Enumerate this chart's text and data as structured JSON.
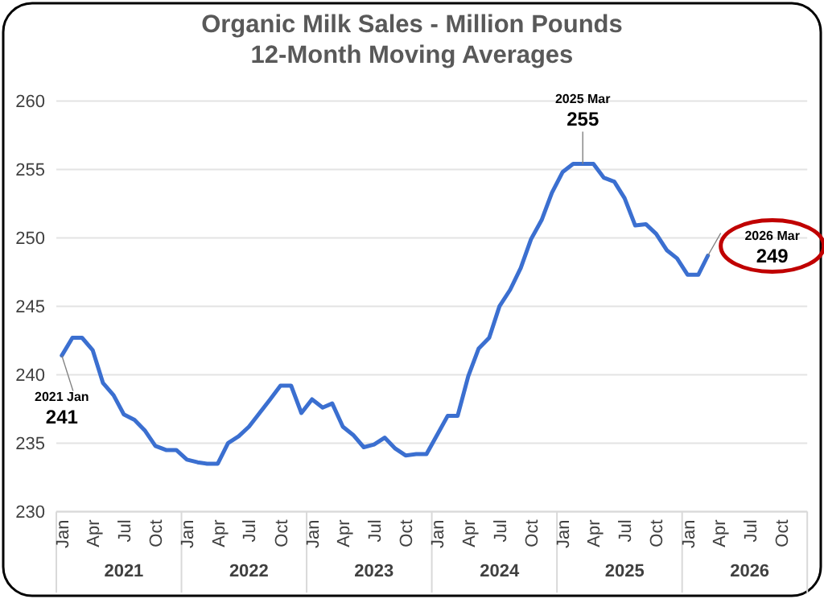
{
  "chart_data": {
    "type": "line",
    "title": "Organic Milk Sales - Million Pounds\n12-Month Moving Averages",
    "x": [
      "2021-01",
      "2021-02",
      "2021-03",
      "2021-04",
      "2021-05",
      "2021-06",
      "2021-07",
      "2021-08",
      "2021-09",
      "2021-10",
      "2021-11",
      "2021-12",
      "2022-01",
      "2022-02",
      "2022-03",
      "2022-04",
      "2022-05",
      "2022-06",
      "2022-07",
      "2022-08",
      "2022-09",
      "2022-10",
      "2022-11",
      "2022-12",
      "2023-01",
      "2023-02",
      "2023-03",
      "2023-04",
      "2023-05",
      "2023-06",
      "2023-07",
      "2023-08",
      "2023-09",
      "2023-10",
      "2023-11",
      "2023-12",
      "2024-01",
      "2024-02",
      "2024-03",
      "2024-04",
      "2024-05",
      "2024-06",
      "2024-07",
      "2024-08",
      "2024-09",
      "2024-10",
      "2024-11",
      "2024-12",
      "2025-01",
      "2025-02",
      "2025-03",
      "2025-04",
      "2025-05",
      "2025-06",
      "2025-07",
      "2025-08",
      "2025-09",
      "2025-10",
      "2025-11",
      "2025-12",
      "2026-01",
      "2026-02",
      "2026-03"
    ],
    "series": [
      {
        "color": "#3b6fd0",
        "values": [
          241.4,
          242.7,
          242.7,
          241.8,
          239.4,
          238.5,
          237.1,
          236.7,
          235.9,
          234.8,
          234.5,
          234.5,
          233.8,
          233.6,
          233.5,
          233.5,
          235.0,
          235.5,
          236.2,
          237.2,
          238.2,
          239.2,
          239.2,
          237.2,
          238.2,
          237.6,
          237.9,
          236.2,
          235.6,
          234.7,
          234.9,
          235.4,
          234.6,
          234.1,
          234.2,
          234.2,
          235.6,
          237.0,
          237.0,
          239.9,
          241.9,
          242.7,
          245.0,
          246.2,
          247.8,
          249.9,
          251.3,
          253.3,
          254.8,
          255.4,
          255.4,
          255.4,
          254.4,
          254.1,
          252.9,
          250.9,
          251.0,
          250.3,
          249.1,
          248.5,
          247.3,
          247.3,
          248.7
        ]
      }
    ],
    "xlim": [
      "2020-12-16",
      "2026-12-16"
    ],
    "x2lim": [
      "2020-12-16",
      "2026-12-16"
    ],
    "xticks": [
      {
        "value": "2021-01",
        "label": "Jan"
      },
      {
        "value": "2021-04",
        "label": "Apr"
      },
      {
        "value": "2021-07",
        "label": "Jul"
      },
      {
        "value": "2021-10",
        "label": "Oct"
      },
      {
        "value": "2022-01",
        "label": "Jan"
      },
      {
        "value": "2022-04",
        "label": "Apr"
      },
      {
        "value": "2022-07",
        "label": "Jul"
      },
      {
        "value": "2022-10",
        "label": "Oct"
      },
      {
        "value": "2023-01",
        "label": "Jan"
      },
      {
        "value": "2023-04",
        "label": "Apr"
      },
      {
        "value": "2023-07",
        "label": "Jul"
      },
      {
        "value": "2023-10",
        "label": "Oct"
      },
      {
        "value": "2024-01",
        "label": "Jan"
      },
      {
        "value": "2024-04",
        "label": "Apr"
      },
      {
        "value": "2024-07",
        "label": "Jul"
      },
      {
        "value": "2024-10",
        "label": "Oct"
      },
      {
        "value": "2025-01",
        "label": "Jan"
      },
      {
        "value": "2025-04",
        "label": "Apr"
      },
      {
        "value": "2025-07",
        "label": "Jul"
      },
      {
        "value": "2025-10",
        "label": "Oct"
      },
      {
        "value": "2026-01",
        "label": "Jan"
      },
      {
        "value": "2026-04",
        "label": "Apr"
      },
      {
        "value": "2026-07",
        "label": "Jul"
      },
      {
        "value": "2026-10",
        "label": "Oct"
      }
    ],
    "x2ticks": [
      {
        "value": "2021-07",
        "label": "2021"
      },
      {
        "value": "2022-07",
        "label": "2022"
      },
      {
        "value": "2023-07",
        "label": "2023"
      },
      {
        "value": "2024-07",
        "label": "2024"
      },
      {
        "value": "2025-07",
        "label": "2025"
      },
      {
        "value": "2026-07",
        "label": "2026"
      }
    ],
    "ylim": [
      230,
      260
    ],
    "yticks": [
      230,
      235,
      240,
      245,
      250,
      255,
      260
    ],
    "grid": "y",
    "marker": "none",
    "line_style": "solid",
    "annotations": [
      {
        "text": "2021 Jan\n241",
        "x": "2021-01",
        "y": 241.4
      },
      {
        "text": "2025 Mar\n255",
        "x": "2025-03",
        "y": 255.4
      },
      {
        "text": "2026 Mar\n249",
        "x": "2026-03",
        "y": 248.7
      }
    ]
  }
}
